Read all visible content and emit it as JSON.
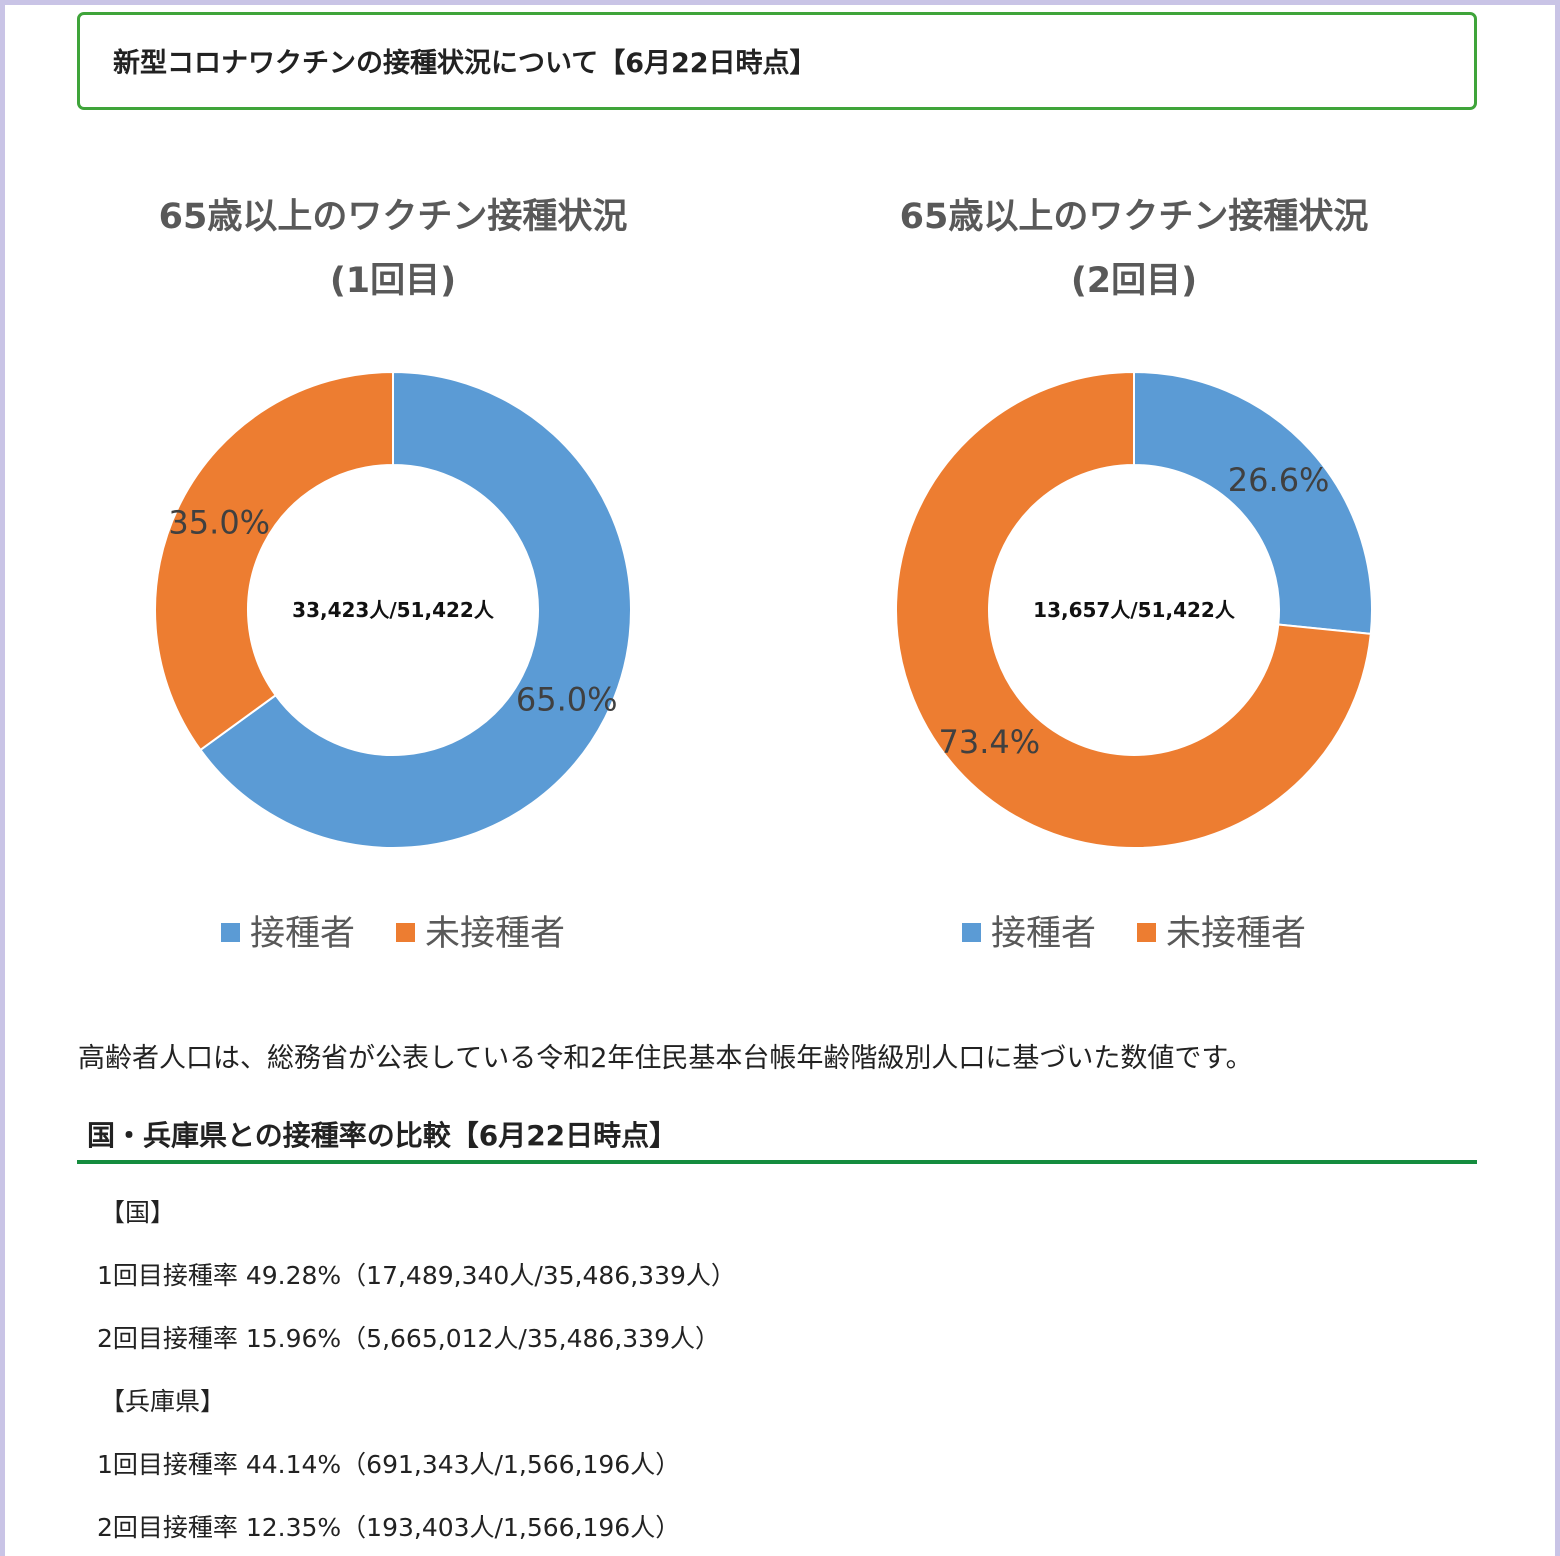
{
  "header": {
    "title": "新型コロナワクチンの接種状況について【6月22日時点】"
  },
  "colors": {
    "vaccinated": "#5b9bd5",
    "unvaccinated": "#ed7d31",
    "header_border": "#3fa43a",
    "section_rule": "#158c3e"
  },
  "chart_data": [
    {
      "type": "pie",
      "title": "65歳以上のワクチン接種状況",
      "subtitle": "(1回目)",
      "categories": [
        "接種者",
        "未接種者"
      ],
      "values": [
        65.0,
        35.0
      ],
      "value_labels": [
        "65.0%",
        "35.0%"
      ],
      "center_label": "33,423人/51,422人",
      "legend": "bottom",
      "legend_entries": [
        "接種者",
        "未接種者"
      ]
    },
    {
      "type": "pie",
      "title": "65歳以上のワクチン接種状況",
      "subtitle": "(2回目)",
      "categories": [
        "接種者",
        "未接種者"
      ],
      "values": [
        26.6,
        73.4
      ],
      "value_labels": [
        "26.6%",
        "73.4%"
      ],
      "center_label": "13,657人/51,422人",
      "legend": "bottom",
      "legend_entries": [
        "接種者",
        "未接種者"
      ]
    }
  ],
  "note": "高齢者人口は、総務省が公表している令和2年住民基本台帳年齢階級別人口に基づいた数値です。",
  "comparison": {
    "title": "国・兵庫県との接種率の比較【6月22日時点】",
    "lines": [
      "【国】",
      "1回目接種率 49.28%（17,489,340人/35,486,339人）",
      "2回目接種率 15.96%（5,665,012人/35,486,339人）",
      "【兵庫県】",
      "1回目接種率 44.14%（691,343人/1,566,196人）",
      "2回目接種率 12.35%（193,403人/1,566,196人）"
    ]
  }
}
